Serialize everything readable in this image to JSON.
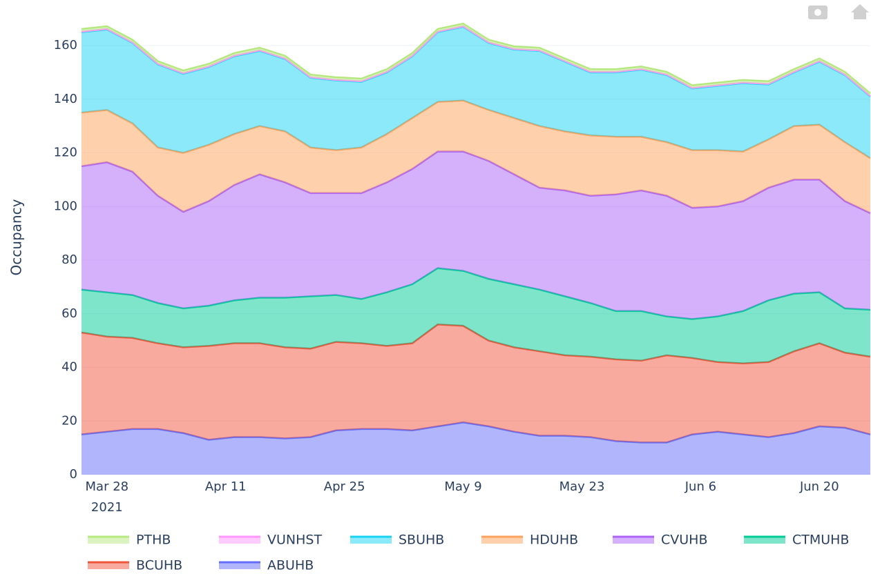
{
  "chart_data": {
    "type": "stacked_area",
    "y_label": "Occupancy",
    "x": [
      "2021-03-25",
      "2021-03-28",
      "2021-03-31",
      "2021-04-03",
      "2021-04-06",
      "2021-04-09",
      "2021-04-12",
      "2021-04-15",
      "2021-04-18",
      "2021-04-21",
      "2021-04-24",
      "2021-04-27",
      "2021-04-30",
      "2021-05-03",
      "2021-05-06",
      "2021-05-09",
      "2021-05-12",
      "2021-05-15",
      "2021-05-18",
      "2021-05-21",
      "2021-05-24",
      "2021-05-27",
      "2021-05-30",
      "2021-06-02",
      "2021-06-05",
      "2021-06-08",
      "2021-06-11",
      "2021-06-14",
      "2021-06-17",
      "2021-06-20",
      "2021-06-23",
      "2021-06-26"
    ],
    "xlim": [
      "2021-03-25",
      "2021-06-26"
    ],
    "xticks": [
      {
        "value": "2021-03-28",
        "label": "Mar 28"
      },
      {
        "value": "2021-04-11",
        "label": "Apr 11"
      },
      {
        "value": "2021-04-25",
        "label": "Apr 25"
      },
      {
        "value": "2021-05-09",
        "label": "May 9"
      },
      {
        "value": "2021-05-23",
        "label": "May 23"
      },
      {
        "value": "2021-06-06",
        "label": "Jun 6"
      },
      {
        "value": "2021-06-20",
        "label": "Jun 20"
      }
    ],
    "xtick_year": "2021",
    "ylim": [
      0,
      177
    ],
    "yticks": [
      0,
      20,
      40,
      60,
      80,
      100,
      120,
      140,
      160
    ],
    "grid": true,
    "legend": "bottom",
    "series": [
      {
        "name": "PTHB",
        "color": "#b6e880",
        "values": [
          1,
          1,
          1,
          1,
          1,
          1,
          1,
          1,
          1,
          1,
          1,
          1,
          1,
          1,
          1,
          1,
          1,
          1,
          1,
          1,
          1,
          1,
          1,
          1,
          1,
          1,
          1,
          1,
          1,
          1,
          1,
          1
        ]
      },
      {
        "name": "VUNHST",
        "color": "#ff97ff",
        "values": [
          0.2,
          0.2,
          0.2,
          0.2,
          0.2,
          0.2,
          0.2,
          0.2,
          0.2,
          0.2,
          0.2,
          0.2,
          0.2,
          0.2,
          0.2,
          0.2,
          0.2,
          0.2,
          0.2,
          0.2,
          0.2,
          0.2,
          0.2,
          0.2,
          0.2,
          0.2,
          0.2,
          0.2,
          0.2,
          0.2,
          0.2,
          0.2
        ]
      },
      {
        "name": "SBUHB",
        "color": "#19d3f3",
        "values": [
          30,
          30,
          30,
          31,
          29.5,
          29,
          29,
          28,
          27,
          26,
          26,
          24.5,
          23,
          23,
          26,
          27.5,
          25,
          25.5,
          28,
          26,
          23.5,
          24,
          25,
          25,
          23,
          24,
          25.5,
          20.5,
          20,
          23.5,
          25,
          23
        ]
      },
      {
        "name": "HDUHB",
        "color": "#ffa15a",
        "values": [
          20,
          19.5,
          18,
          18,
          22,
          21,
          19,
          18,
          19,
          17,
          16,
          17,
          18,
          19,
          18.5,
          19,
          19,
          21,
          23,
          22,
          22.5,
          21.5,
          20,
          20,
          21.5,
          21,
          18.5,
          18,
          20,
          20.5,
          22,
          20.5
        ]
      },
      {
        "name": "CVUHB",
        "color": "#ab63fa",
        "values": [
          46,
          48.5,
          46,
          40,
          36,
          39,
          43,
          46,
          43,
          38.5,
          38,
          39.5,
          41,
          43,
          43.5,
          44.5,
          44,
          41,
          38,
          39.5,
          40,
          43.5,
          45,
          45,
          41.5,
          41,
          41,
          42,
          42.5,
          42,
          40,
          36
        ]
      },
      {
        "name": "CTMUHB",
        "color": "#00cc96",
        "values": [
          16,
          16.5,
          16,
          15,
          14.5,
          15,
          16,
          17,
          18.5,
          19.5,
          17.5,
          16.5,
          20,
          22,
          21,
          20.5,
          23,
          23.5,
          23,
          22,
          20,
          18,
          18.5,
          14.5,
          14.5,
          17,
          19.5,
          23,
          21.5,
          19,
          16.5,
          17.5
        ]
      },
      {
        "name": "BCUHB",
        "color": "#ef553b",
        "values": [
          38,
          35.5,
          34,
          32,
          32,
          35,
          35,
          35,
          34,
          33,
          33,
          32,
          31,
          32.5,
          38,
          36,
          32,
          31.5,
          31.5,
          30,
          30,
          30.5,
          30.5,
          32.5,
          28.5,
          26,
          26.5,
          28,
          30.5,
          31,
          28,
          29
        ]
      },
      {
        "name": "ABUHB",
        "color": "#636efa",
        "values": [
          15,
          16,
          17,
          17,
          15.5,
          13,
          14,
          14,
          13.5,
          14,
          16.5,
          17,
          17,
          16.5,
          18,
          19.5,
          18,
          16,
          14.5,
          14.5,
          14,
          12.5,
          12,
          12,
          15,
          16,
          15,
          14,
          15.5,
          18,
          17.5,
          15
        ]
      }
    ]
  }
}
